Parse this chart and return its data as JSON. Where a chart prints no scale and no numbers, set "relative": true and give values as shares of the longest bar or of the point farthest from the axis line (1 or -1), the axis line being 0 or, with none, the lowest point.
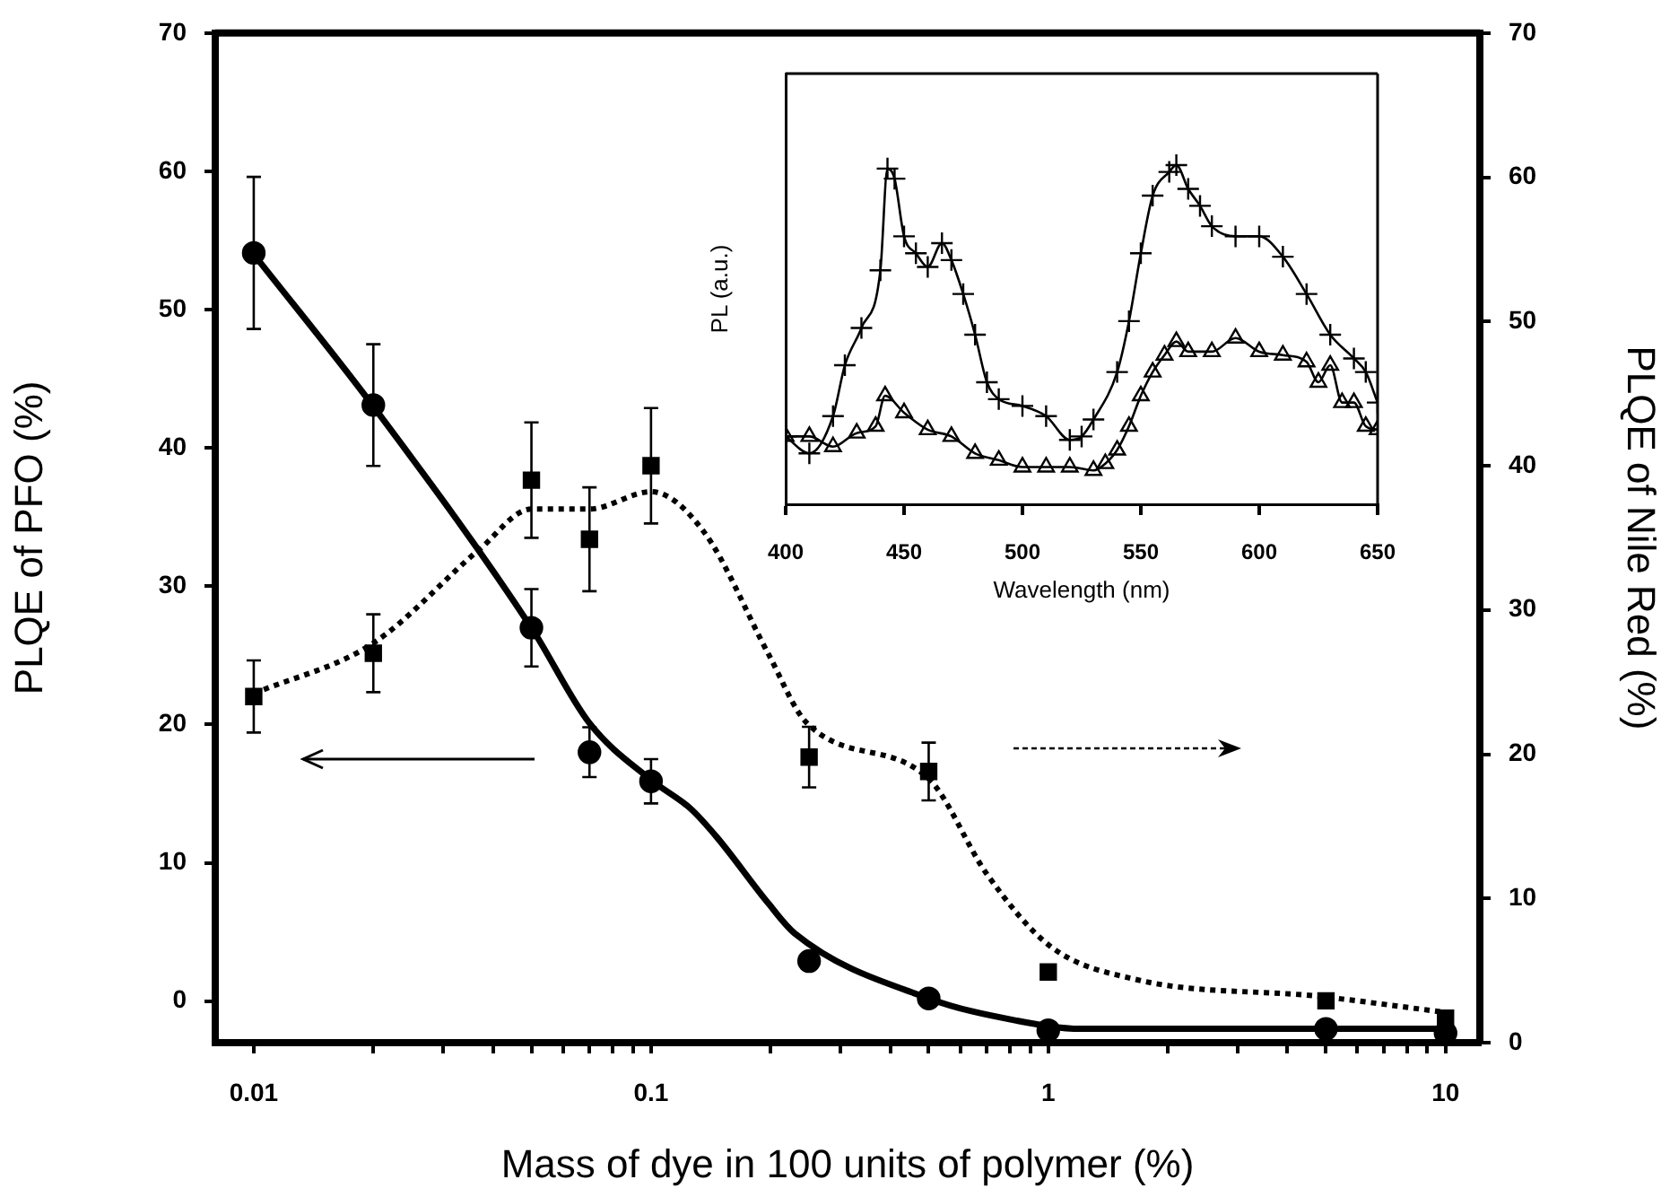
{
  "chart_data": [
    {
      "type": "scatter",
      "xlabel": "Mass of dye in 100 units of polymer (%)",
      "ylabel": "PLQE of PFO (%)",
      "y2label": "PLQE of Nile Red (%)",
      "log": "x",
      "grid": false,
      "legend": false,
      "xlim": [
        0.008,
        12.2
      ],
      "ylim": [
        -3,
        70
      ],
      "y2lim": [
        0,
        70
      ],
      "xticks": [
        0.01,
        {
          "value": 0.02,
          "label": null
        },
        {
          "value": 0.03,
          "label": null
        },
        {
          "value": 0.04,
          "label": null
        },
        {
          "value": 0.05,
          "label": null
        },
        {
          "value": 0.06,
          "label": null
        },
        {
          "value": 0.07,
          "label": null
        },
        {
          "value": 0.08,
          "label": null
        },
        {
          "value": 0.09,
          "label": null
        },
        0.1,
        {
          "value": 0.2,
          "label": null
        },
        {
          "value": 0.3,
          "label": null
        },
        {
          "value": 0.4,
          "label": null
        },
        {
          "value": 0.5,
          "label": null
        },
        {
          "value": 0.6,
          "label": null
        },
        {
          "value": 0.7,
          "label": null
        },
        {
          "value": 0.8,
          "label": null
        },
        {
          "value": 0.9,
          "label": null
        },
        1,
        {
          "value": 2,
          "label": null
        },
        {
          "value": 3,
          "label": null
        },
        {
          "value": 4,
          "label": null
        },
        {
          "value": 5,
          "label": null
        },
        {
          "value": 6,
          "label": null
        },
        {
          "value": 7,
          "label": null
        },
        {
          "value": 8,
          "label": null
        },
        {
          "value": 9,
          "label": null
        },
        10
      ],
      "yticks": [
        0,
        10,
        20,
        30,
        40,
        50,
        60,
        70
      ],
      "y2ticks": [
        0,
        10,
        20,
        30,
        40,
        50,
        60,
        70
      ],
      "x": [
        0.01,
        0.02,
        0.05,
        0.07,
        0.1,
        0.25,
        0.5,
        1,
        5,
        10
      ],
      "series": [
        {
          "color": "#000000",
          "marker": "circle",
          "values": [
            54.1,
            43.1,
            27.0,
            18.0,
            15.9,
            2.9,
            0.2,
            -2.1,
            -2.0,
            -2.3
          ],
          "errors": [
            5.5,
            4.4,
            2.8,
            1.8,
            1.6,
            null,
            null,
            null,
            null,
            null
          ]
        },
        {
          "axis": "y2",
          "color": "#000000",
          "marker": "square",
          "values": [
            24.0,
            27.0,
            39.0,
            34.9,
            40.0,
            19.8,
            18.8,
            4.9,
            2.9,
            1.7
          ],
          "errors": [
            2.5,
            2.7,
            4,
            3.6,
            4,
            2.1,
            2,
            null,
            null,
            null
          ]
        },
        {
          "type": "line",
          "color": "#000000",
          "marker": "none",
          "line_style": "solid",
          "x": [
            0.01,
            0.02,
            0.05,
            0.07,
            0.1,
            0.126,
            0.147,
            0.197,
            0.23,
            0.5,
            0.83,
            1.21,
            10
          ],
          "values": [
            54,
            43,
            27,
            20.1,
            16,
            13.9,
            11.8,
            7.1,
            4.9,
            0.2,
            -1.4,
            -2.0,
            -2.0
          ]
        },
        {
          "type": "line",
          "axis": "y2",
          "color": "#000000",
          "marker": "none",
          "line_style": "dotted",
          "x": [
            0.01,
            0.02,
            0.037,
            0.05,
            0.07,
            0.1,
            0.136,
            0.197,
            0.246,
            0.5,
            0.7,
            1.01,
            1.65,
            4.85,
            10
          ],
          "values": [
            24.2,
            27.7,
            34.2,
            37.0,
            37.0,
            38.2,
            35.4,
            27.0,
            22.2,
            18.3,
            11.7,
            6.7,
            4.4,
            3.2,
            2.1
          ]
        }
      ]
    },
    {
      "type": "line",
      "xlabel": "Wavelength (nm)",
      "ylabel": "PL (a.u.)",
      "relative": true,
      "grid": false,
      "legend": false,
      "xlim": [
        400,
        650
      ],
      "xticks": [
        400,
        450,
        500,
        550,
        600,
        650
      ],
      "series": [
        {
          "color": "#000000",
          "marker": "cross",
          "line_style": "solid",
          "x": [
            400,
            410,
            420,
            425,
            432,
            440,
            443,
            446,
            450,
            455,
            460,
            466,
            470,
            475,
            480,
            485,
            490,
            500,
            510,
            520,
            525,
            530,
            540,
            545,
            550,
            555,
            562,
            565,
            570,
            575,
            580,
            590,
            600,
            610,
            620,
            630,
            640,
            645,
            650
          ],
          "values": [
            0.2,
            0.15,
            0.26,
            0.41,
            0.52,
            0.69,
            0.99,
            0.96,
            0.79,
            0.74,
            0.7,
            0.77,
            0.72,
            0.62,
            0.5,
            0.36,
            0.31,
            0.29,
            0.26,
            0.19,
            0.2,
            0.25,
            0.39,
            0.54,
            0.74,
            0.91,
            0.98,
            1,
            0.93,
            0.88,
            0.82,
            0.79,
            0.79,
            0.73,
            0.62,
            0.5,
            0.43,
            0.39,
            0.3
          ]
        },
        {
          "color": "#000000",
          "marker": "triangle",
          "line_style": "solid",
          "x": [
            400,
            410,
            420,
            430,
            438,
            442,
            450,
            460,
            470,
            480,
            490,
            500,
            510,
            520,
            530,
            535,
            540,
            545,
            550,
            555,
            560,
            565,
            570,
            580,
            590,
            600,
            610,
            620,
            625,
            630,
            635,
            640,
            645,
            650
          ],
          "values": [
            0.2,
            0.2,
            0.17,
            0.21,
            0.23,
            0.32,
            0.27,
            0.22,
            0.2,
            0.15,
            0.13,
            0.11,
            0.11,
            0.11,
            0.1,
            0.12,
            0.16,
            0.23,
            0.32,
            0.39,
            0.44,
            0.48,
            0.45,
            0.45,
            0.49,
            0.45,
            0.44,
            0.42,
            0.36,
            0.41,
            0.3,
            0.3,
            0.23,
            0.22
          ]
        }
      ]
    }
  ]
}
